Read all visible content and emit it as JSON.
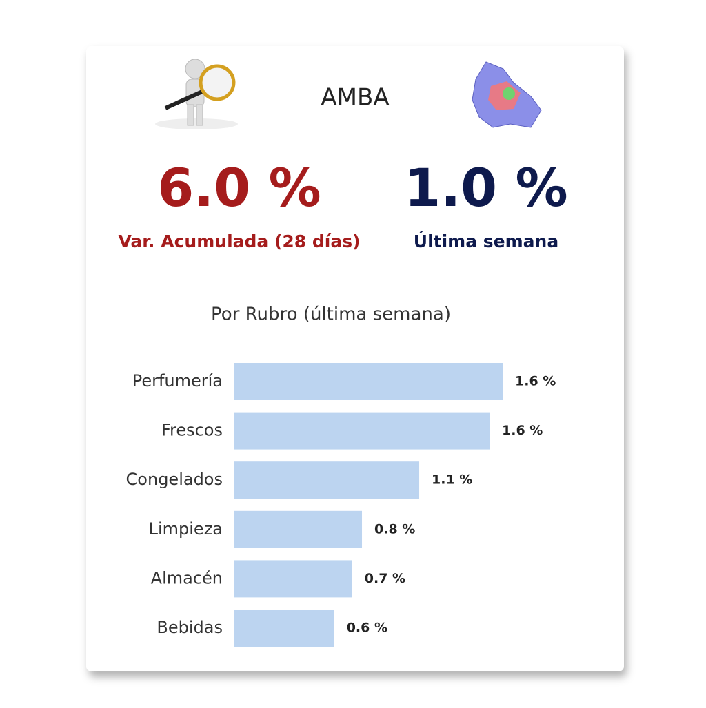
{
  "header": {
    "title": "AMBA"
  },
  "kpis": [
    {
      "value": "6.0 %",
      "label": "Var. Acumulada (28 días)",
      "color": "#a51c1c"
    },
    {
      "value": "1.0 %",
      "label": "Última semana",
      "color": "#0e1a4d"
    }
  ],
  "chart_data": {
    "type": "hbar",
    "title": "Por Rubro (última semana)",
    "categories": [
      "Perfumería",
      "Frescos",
      "Congelados",
      "Limpieza",
      "Almacén",
      "Bebidas"
    ],
    "values": [
      1.64,
      1.56,
      1.13,
      0.78,
      0.72,
      0.61
    ],
    "value_labels": [
      "1.6 %",
      "1.6 %",
      "1.1 %",
      "0.8 %",
      "0.7 %",
      "0.6 %"
    ],
    "color": "#bcd4f0"
  }
}
